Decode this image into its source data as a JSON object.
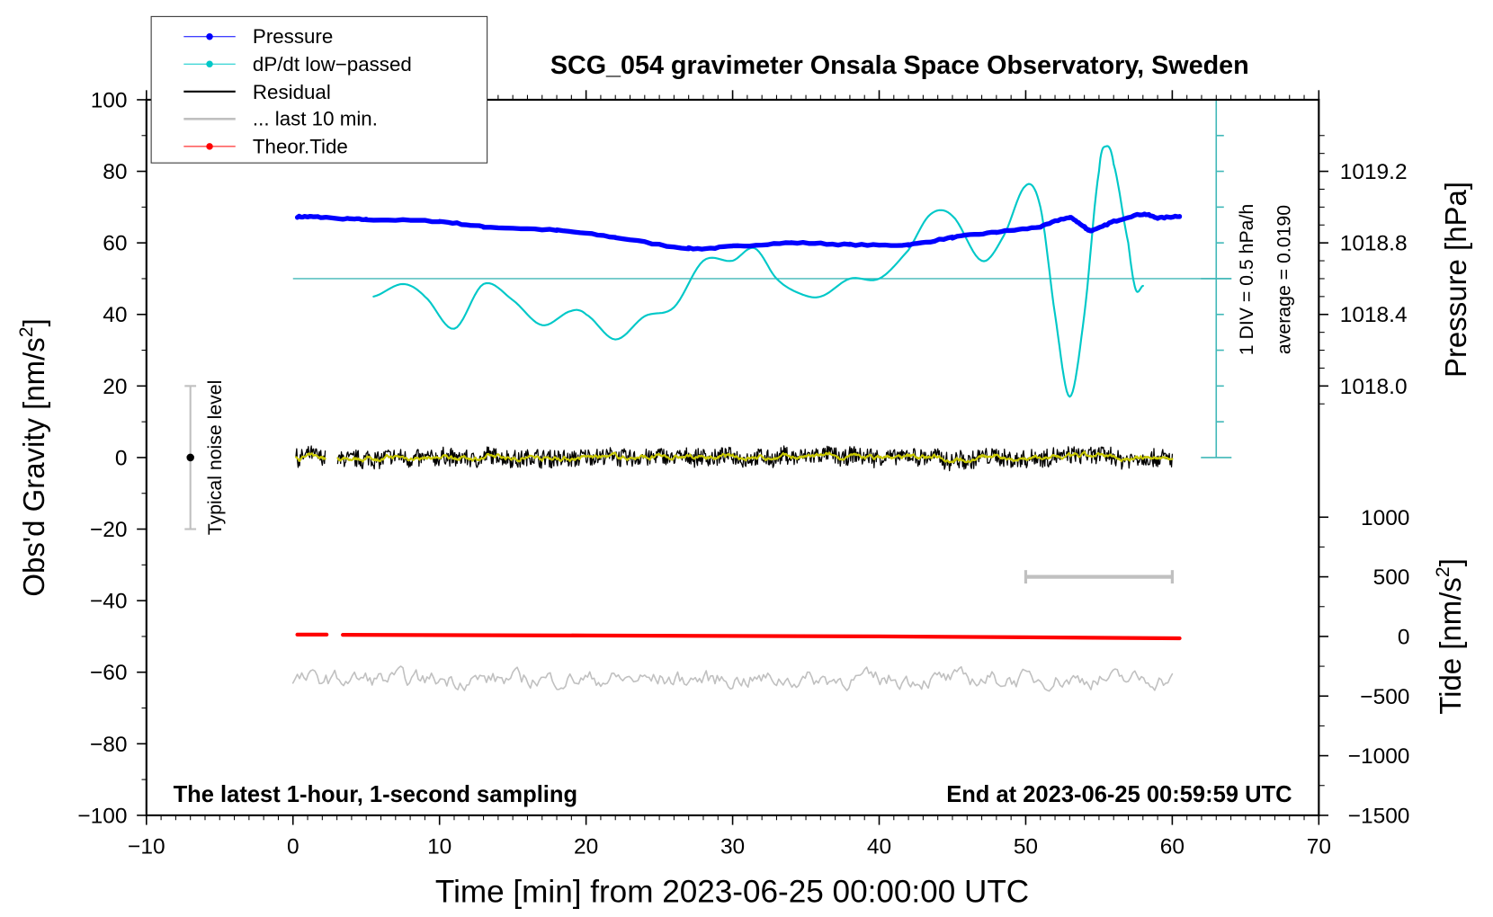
{
  "chart_data": {
    "type": "line",
    "title": "SCG_054 gravimeter Onsala Space Observatory, Sweden",
    "xlabel": "Time [min] from 2023-06-25 00:00:00 UTC",
    "ylabel_left": "Obs'd Gravity [nm/s",
    "ylabel_left_sup": "2",
    "ylabel_left_end": "]",
    "ylabel_pressure": "Pressure [hPa]",
    "ylabel_tide": "Tide [nm/s",
    "ylabel_tide_sup": "2",
    "ylabel_tide_end": "]",
    "xlim": [
      -10,
      70
    ],
    "ylim": [
      -100,
      100
    ],
    "xticks": [
      -10,
      0,
      10,
      20,
      30,
      40,
      50,
      60,
      70
    ],
    "yticks": [
      -100,
      -80,
      -60,
      -40,
      -20,
      0,
      20,
      40,
      60,
      80,
      100
    ],
    "pressure_ticks": [
      "1018.0",
      "1018.4",
      "1018.8",
      "1019.2"
    ],
    "tide_ticks": [
      -1500,
      -1000,
      -500,
      0,
      500,
      1000
    ],
    "annotation_left": "The latest 1-hour, 1-second sampling",
    "annotation_right": "End at 2023-06-25 00:59:59 UTC",
    "noise_label": "Typical noise level",
    "dpdt_div_label": "1 DIV = 0.5 hPa/h",
    "dpdt_avg_label": "average = 0.0190",
    "legend": {
      "position": "top-left",
      "entries": [
        "Pressure",
        "dP/dt low−passed",
        "Residual",
        "... last 10 min.",
        "Theor.Tide"
      ]
    },
    "colors": {
      "pressure": "#0000ff",
      "dpdt": "#00c8c8",
      "dpdt_axis": "#40b8b8",
      "residual": "#000000",
      "residual_smooth": "#c8c800",
      "last10": "#c0c0c0",
      "tide": "#ff0000"
    },
    "series": [
      {
        "name": "Pressure",
        "unit": "hPa",
        "x": [
          0.3,
          1.5,
          3.4,
          5,
          10,
          13,
          18,
          22,
          27,
          30,
          34,
          38,
          42,
          45,
          48,
          51,
          53,
          54,
          54.5,
          56,
          58,
          59,
          60.5
        ],
        "values": [
          1018.946,
          1018.945,
          1018.935,
          1018.93,
          1018.92,
          1018.89,
          1018.87,
          1018.83,
          1018.77,
          1018.78,
          1018.8,
          1018.79,
          1018.79,
          1018.83,
          1018.86,
          1018.89,
          1018.94,
          1018.89,
          1018.87,
          1018.92,
          1018.96,
          1018.94,
          1018.95
        ],
        "gap": [
          2.3,
          3.4
        ]
      },
      {
        "name": "dP/dt low-passed",
        "unit": "hPa/h",
        "x": [
          5.5,
          7.5,
          9,
          11,
          13,
          15,
          17,
          19,
          20,
          22,
          24,
          26,
          28,
          30,
          31.5,
          33,
          34.5,
          36,
          38,
          40,
          42,
          43.5,
          45,
          47,
          48.5,
          50,
          51,
          52,
          53,
          54,
          55,
          55.5,
          56,
          57,
          57.5,
          58
        ],
        "values": [
          -0.25,
          -0.075,
          -0.25,
          -0.7,
          -0.075,
          -0.3,
          -0.65,
          -0.45,
          -0.5,
          -0.85,
          -0.525,
          -0.4,
          0.25,
          0.25,
          0.425,
          0,
          -0.2,
          -0.25,
          0,
          0,
          0.4,
          0.9,
          0.875,
          0.25,
          0.6,
          1.3,
          1.0,
          -0.5,
          -1.65,
          -0.5,
          1.5,
          1.85,
          1.6,
          0.5,
          -0.15,
          -0.1
        ]
      },
      {
        "name": "Residual",
        "unit": "nm/s2",
        "range": [
          0,
          60
        ],
        "gap": [
          2.2,
          3
        ],
        "noise_amplitude": 3
      },
      {
        "name": "... last 10 min.",
        "unit": "nm/s2",
        "range": [
          0,
          60
        ],
        "offset": -62,
        "noise_amplitude": 2.5
      },
      {
        "name": "Theor.Tide",
        "unit": "nm/s2",
        "x": [
          0.3,
          2.3,
          3.4,
          20,
          40,
          60.5
        ],
        "values": [
          15,
          15,
          14,
          8,
          0,
          -15
        ],
        "gap": [
          2.3,
          3.4
        ]
      }
    ],
    "last10_bar": [
      50,
      60
    ],
    "noise_bar": {
      "x": -7,
      "range": [
        -20,
        20
      ]
    }
  }
}
